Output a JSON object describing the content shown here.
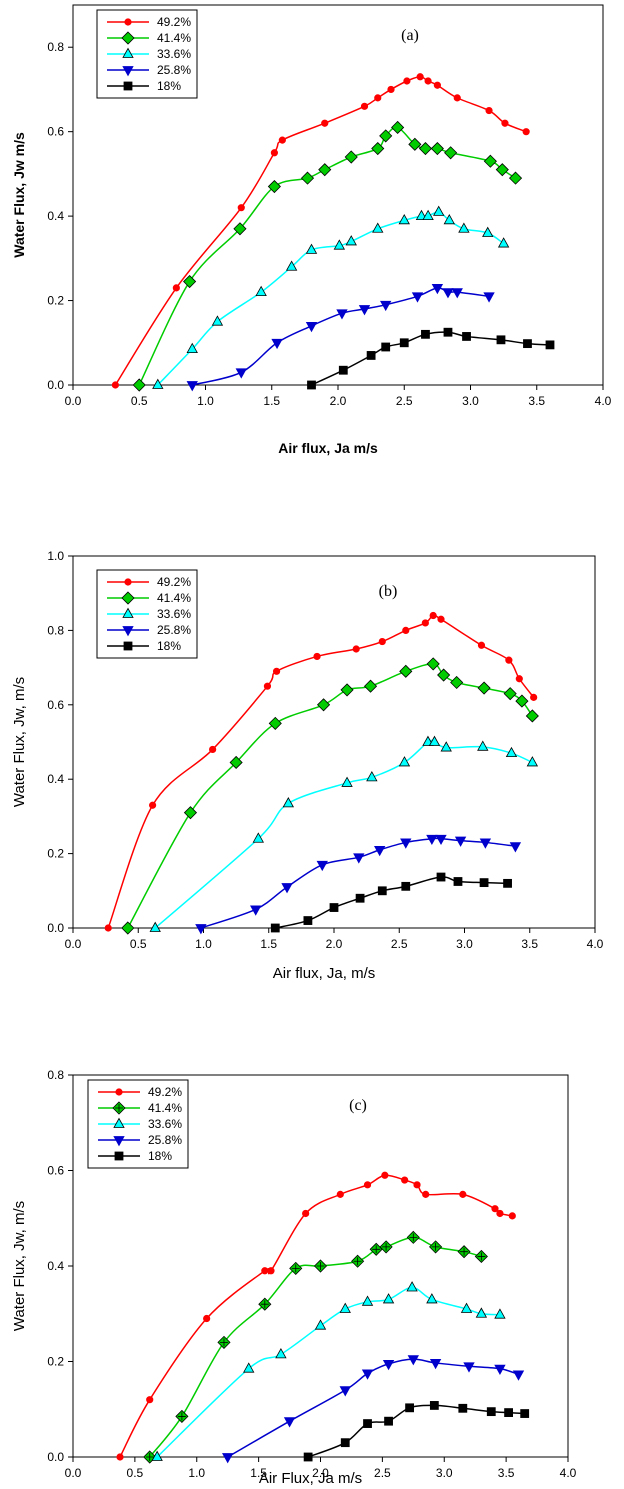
{
  "colors": {
    "49.2%": "#ff0000",
    "41.4%": "#00cc00",
    "33.6%": "#00ffff",
    "25.8%": "#0000cc",
    "18%": "#000000"
  },
  "chart_data": [
    {
      "type": "line",
      "panel_label": "(a)",
      "xlabel": "Air flux, Ja     m/s",
      "ylabel": "Water Flux, Jw   m/s",
      "xlim": [
        0,
        4
      ],
      "ylim": [
        0,
        0.9
      ],
      "xticks": [
        "0.0",
        "0.5",
        "1.0",
        "1.5",
        "2.0",
        "2.5",
        "3.0",
        "3.5",
        "4.0"
      ],
      "yticks": [
        "0.0",
        "0.2",
        "0.4",
        "0.6",
        "0.8"
      ],
      "legend_position": "top-left",
      "series": [
        {
          "name": "49.2%",
          "marker": "circle",
          "x": [
            0.32,
            0.78,
            1.27,
            1.52,
            1.58,
            1.9,
            2.2,
            2.3,
            2.4,
            2.52,
            2.62,
            2.68,
            2.75,
            2.9,
            3.14,
            3.26,
            3.42
          ],
          "y": [
            0.0,
            0.23,
            0.42,
            0.55,
            0.58,
            0.62,
            0.66,
            0.68,
            0.7,
            0.72,
            0.73,
            0.72,
            0.71,
            0.68,
            0.65,
            0.62,
            0.6
          ]
        },
        {
          "name": "41.4%",
          "marker": "diamond",
          "x": [
            0.5,
            0.88,
            1.26,
            1.52,
            1.77,
            1.9,
            2.1,
            2.3,
            2.36,
            2.45,
            2.58,
            2.66,
            2.75,
            2.85,
            3.15,
            3.24,
            3.34
          ],
          "y": [
            0.0,
            0.245,
            0.37,
            0.47,
            0.49,
            0.51,
            0.54,
            0.56,
            0.59,
            0.61,
            0.57,
            0.56,
            0.56,
            0.55,
            0.53,
            0.51,
            0.49
          ]
        },
        {
          "name": "33.6%",
          "marker": "triangle-up",
          "x": [
            0.64,
            0.9,
            1.09,
            1.42,
            1.65,
            1.8,
            2.01,
            2.1,
            2.3,
            2.5,
            2.63,
            2.68,
            2.76,
            2.84,
            2.95,
            3.13,
            3.25
          ],
          "y": [
            0.0,
            0.085,
            0.15,
            0.22,
            0.28,
            0.32,
            0.33,
            0.34,
            0.37,
            0.39,
            0.4,
            0.4,
            0.41,
            0.39,
            0.37,
            0.36,
            0.335
          ]
        },
        {
          "name": "25.8%",
          "marker": "triangle-down",
          "x": [
            0.9,
            1.27,
            1.54,
            1.8,
            2.03,
            2.2,
            2.36,
            2.6,
            2.75,
            2.83,
            2.9,
            3.14
          ],
          "y": [
            0.0,
            0.03,
            0.1,
            0.14,
            0.17,
            0.18,
            0.19,
            0.21,
            0.23,
            0.22,
            0.22,
            0.21
          ]
        },
        {
          "name": "18%",
          "marker": "square",
          "x": [
            1.8,
            2.04,
            2.25,
            2.36,
            2.5,
            2.66,
            2.83,
            2.97,
            3.23,
            3.43,
            3.6
          ],
          "y": [
            0.0,
            0.035,
            0.07,
            0.09,
            0.1,
            0.12,
            0.125,
            0.115,
            0.107,
            0.098,
            0.095
          ]
        }
      ]
    },
    {
      "type": "line",
      "panel_label": "(b)",
      "xlabel": "Air flux, Ja,       m/s",
      "ylabel": "Water Flux, Jw,       m/s",
      "xlim": [
        0,
        4
      ],
      "ylim": [
        0,
        1
      ],
      "xticks": [
        "0.0",
        "0.5",
        "1.0",
        "1.5",
        "2.0",
        "2.5",
        "3.0",
        "3.5",
        "4.0"
      ],
      "yticks": [
        "0.0",
        "0.2",
        "0.4",
        "0.6",
        "0.8",
        "1.0"
      ],
      "legend_position": "top-left",
      "series": [
        {
          "name": "49.2%",
          "marker": "circle",
          "x": [
            0.27,
            0.61,
            1.07,
            1.49,
            1.56,
            1.87,
            2.17,
            2.37,
            2.55,
            2.7,
            2.76,
            2.82,
            3.13,
            3.34,
            3.42,
            3.53
          ],
          "y": [
            0.0,
            0.33,
            0.48,
            0.65,
            0.69,
            0.73,
            0.75,
            0.77,
            0.8,
            0.82,
            0.84,
            0.83,
            0.76,
            0.72,
            0.67,
            0.62
          ]
        },
        {
          "name": "41.4%",
          "marker": "diamond",
          "x": [
            0.42,
            0.9,
            1.25,
            1.55,
            1.92,
            2.1,
            2.28,
            2.55,
            2.76,
            2.84,
            2.94,
            3.15,
            3.35,
            3.44,
            3.52
          ],
          "y": [
            0.0,
            0.31,
            0.445,
            0.55,
            0.6,
            0.64,
            0.65,
            0.69,
            0.71,
            0.68,
            0.66,
            0.645,
            0.63,
            0.61,
            0.57
          ]
        },
        {
          "name": "33.6%",
          "marker": "triangle-up",
          "x": [
            0.63,
            1.42,
            1.65,
            2.1,
            2.29,
            2.54,
            2.72,
            2.77,
            2.86,
            3.14,
            3.36,
            3.52
          ],
          "y": [
            0.0,
            0.24,
            0.335,
            0.39,
            0.405,
            0.445,
            0.5,
            0.5,
            0.485,
            0.487,
            0.47,
            0.445
          ]
        },
        {
          "name": "25.8%",
          "marker": "triangle-down",
          "x": [
            0.98,
            1.4,
            1.64,
            1.91,
            2.19,
            2.35,
            2.55,
            2.75,
            2.82,
            2.97,
            3.16,
            3.39
          ],
          "y": [
            0.0,
            0.05,
            0.11,
            0.17,
            0.19,
            0.21,
            0.23,
            0.24,
            0.24,
            0.235,
            0.23,
            0.22
          ]
        },
        {
          "name": "18%",
          "marker": "square",
          "x": [
            1.55,
            1.8,
            2.0,
            2.2,
            2.37,
            2.55,
            2.82,
            2.95,
            3.15,
            3.33
          ],
          "y": [
            0.0,
            0.02,
            0.055,
            0.08,
            0.1,
            0.112,
            0.137,
            0.125,
            0.122,
            0.12
          ]
        }
      ]
    },
    {
      "type": "line",
      "panel_label": "(c)",
      "xlabel": "Air Flux, Ja     m/s",
      "ylabel": "Water Flux, Jw, m/s",
      "xlim": [
        0,
        4
      ],
      "ylim": [
        0,
        0.8
      ],
      "xticks": [
        "0.0",
        "0.5",
        "1.0",
        "1.5",
        "2.0",
        "2.5",
        "3.0",
        "3.5",
        "4.0"
      ],
      "yticks": [
        "0.0",
        "0.2",
        "0.4",
        "0.6",
        "0.8"
      ],
      "legend_position": "top-left",
      "series": [
        {
          "name": "49.2%",
          "marker": "circle",
          "x": [
            0.38,
            0.62,
            1.08,
            1.55,
            1.6,
            1.88,
            2.16,
            2.38,
            2.52,
            2.68,
            2.78,
            2.85,
            3.15,
            3.41,
            3.45,
            3.55
          ],
          "y": [
            0.0,
            0.12,
            0.29,
            0.39,
            0.39,
            0.51,
            0.55,
            0.57,
            0.59,
            0.58,
            0.57,
            0.55,
            0.55,
            0.52,
            0.51,
            0.505
          ]
        },
        {
          "name": "41.4%",
          "marker": "diamond-plus",
          "x": [
            0.62,
            0.88,
            1.22,
            1.55,
            1.8,
            2.0,
            2.3,
            2.45,
            2.53,
            2.75,
            2.93,
            3.16,
            3.3
          ],
          "y": [
            0.0,
            0.085,
            0.24,
            0.32,
            0.395,
            0.4,
            0.41,
            0.435,
            0.44,
            0.46,
            0.44,
            0.43,
            0.42
          ]
        },
        {
          "name": "33.6%",
          "marker": "triangle-up",
          "x": [
            0.68,
            1.42,
            1.68,
            2.0,
            2.2,
            2.38,
            2.55,
            2.74,
            2.9,
            3.18,
            3.3,
            3.45
          ],
          "y": [
            0.0,
            0.185,
            0.215,
            0.275,
            0.31,
            0.325,
            0.33,
            0.355,
            0.33,
            0.31,
            0.3,
            0.298
          ]
        },
        {
          "name": "25.8%",
          "marker": "triangle-down",
          "x": [
            1.25,
            1.75,
            2.2,
            2.38,
            2.55,
            2.75,
            2.93,
            3.2,
            3.45,
            3.6
          ],
          "y": [
            0.0,
            0.075,
            0.14,
            0.175,
            0.195,
            0.205,
            0.197,
            0.19,
            0.185,
            0.173
          ]
        },
        {
          "name": "18%",
          "marker": "square",
          "x": [
            1.9,
            2.2,
            2.38,
            2.55,
            2.72,
            2.92,
            3.15,
            3.38,
            3.52,
            3.65
          ],
          "y": [
            0.0,
            0.03,
            0.07,
            0.075,
            0.103,
            0.108,
            0.102,
            0.095,
            0.093,
            0.091
          ]
        }
      ]
    }
  ]
}
